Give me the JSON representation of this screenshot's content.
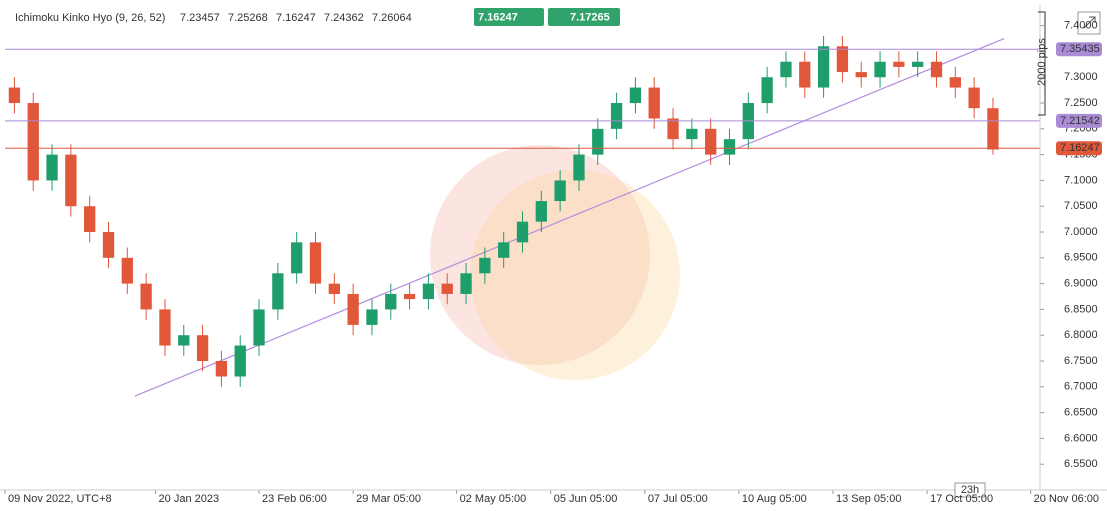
{
  "chart_data": {
    "type": "candlestick",
    "title": "Ichimoku Kinko Hyo (9, 26, 52)",
    "indicator_values": [
      {
        "value": "7.23457",
        "color": "#2f7ed8"
      },
      {
        "value": "7.25268",
        "color": "#c0392b"
      },
      {
        "value": "7.16247",
        "color": "#2ecc8f"
      },
      {
        "value": "7.24362",
        "color": "#1e9e6a"
      },
      {
        "value": "7.26064",
        "color": "#d0212f"
      }
    ],
    "sell_price": "7.16247",
    "buy_price": "7.17265",
    "open": [
      7.28,
      7.25,
      7.1,
      7.15,
      7.05,
      7.0,
      6.95,
      6.9,
      6.85,
      6.78,
      6.8,
      6.75,
      6.72,
      6.78,
      6.85,
      6.92,
      6.98,
      6.9,
      6.88,
      6.82,
      6.85,
      6.88,
      6.87,
      6.9,
      6.88,
      6.92,
      6.95,
      6.98,
      7.02,
      7.06,
      7.1,
      7.15,
      7.2,
      7.25,
      7.28,
      7.22,
      7.18,
      7.2,
      7.15,
      7.18,
      7.25,
      7.3,
      7.33,
      7.28,
      7.36,
      7.31,
      7.3,
      7.33,
      7.32,
      7.33,
      7.3,
      7.28,
      7.24
    ],
    "high": [
      7.3,
      7.27,
      7.17,
      7.17,
      7.07,
      7.02,
      6.97,
      6.92,
      6.87,
      6.82,
      6.82,
      6.77,
      6.8,
      6.87,
      6.94,
      7.0,
      7.0,
      6.92,
      6.9,
      6.87,
      6.9,
      6.9,
      6.92,
      6.92,
      6.94,
      6.97,
      7.0,
      7.04,
      7.08,
      7.12,
      7.17,
      7.22,
      7.27,
      7.3,
      7.3,
      7.24,
      7.22,
      7.22,
      7.2,
      7.27,
      7.32,
      7.35,
      7.35,
      7.38,
      7.38,
      7.33,
      7.35,
      7.35,
      7.35,
      7.35,
      7.32,
      7.3,
      7.26
    ],
    "low": [
      7.23,
      7.08,
      7.08,
      7.03,
      6.98,
      6.93,
      6.88,
      6.83,
      6.76,
      6.76,
      6.73,
      6.7,
      6.7,
      6.76,
      6.83,
      6.9,
      6.88,
      6.86,
      6.8,
      6.8,
      6.83,
      6.85,
      6.85,
      6.86,
      6.86,
      6.9,
      6.93,
      6.96,
      7.0,
      7.04,
      7.08,
      7.13,
      7.18,
      7.23,
      7.2,
      7.16,
      7.16,
      7.13,
      7.13,
      7.16,
      7.23,
      7.28,
      7.26,
      7.26,
      7.29,
      7.28,
      7.28,
      7.3,
      7.3,
      7.28,
      7.26,
      7.22,
      7.15
    ],
    "close": [
      7.25,
      7.1,
      7.15,
      7.05,
      7.0,
      6.95,
      6.9,
      6.85,
      6.78,
      6.8,
      6.75,
      6.72,
      6.78,
      6.85,
      6.92,
      6.98,
      6.9,
      6.88,
      6.82,
      6.85,
      6.88,
      6.87,
      6.9,
      6.88,
      6.92,
      6.95,
      6.98,
      7.02,
      7.06,
      7.1,
      7.15,
      7.2,
      7.25,
      7.28,
      7.22,
      7.18,
      7.2,
      7.15,
      7.18,
      7.25,
      7.3,
      7.33,
      7.28,
      7.36,
      7.31,
      7.3,
      7.33,
      7.32,
      7.33,
      7.3,
      7.28,
      7.24,
      7.16
    ],
    "up_color": "#1e9e6a",
    "down_color": "#e0573a",
    "xlim": [
      0,
      55
    ],
    "xticks": [
      {
        "value": 0,
        "label": "09 Nov 2022, UTC+8"
      },
      {
        "value": 8,
        "label": "20 Jan 2023"
      },
      {
        "value": 13.5,
        "label": "23 Feb 06:00"
      },
      {
        "value": 18.5,
        "label": "29 Mar 05:00"
      },
      {
        "value": 24,
        "label": "02 May 05:00"
      },
      {
        "value": 29,
        "label": "05 Jun 05:00"
      },
      {
        "value": 34,
        "label": "07 Jul 05:00"
      },
      {
        "value": 39,
        "label": "10 Aug 05:00"
      },
      {
        "value": 44,
        "label": "13 Sep 05:00"
      },
      {
        "value": 49,
        "label": "17 Oct 05:00"
      },
      {
        "value": 54.5,
        "label": "20 Nov 06:00"
      }
    ],
    "ylim": [
      6.5,
      7.44
    ],
    "yticks": [
      {
        "value": 6.55,
        "label": "6.5500"
      },
      {
        "value": 6.6,
        "label": "6.6000"
      },
      {
        "value": 6.65,
        "label": "6.6500"
      },
      {
        "value": 6.7,
        "label": "6.7000"
      },
      {
        "value": 6.75,
        "label": "6.7500"
      },
      {
        "value": 6.8,
        "label": "6.8000"
      },
      {
        "value": 6.85,
        "label": "6.8500"
      },
      {
        "value": 6.9,
        "label": "6.9000"
      },
      {
        "value": 6.95,
        "label": "6.9500"
      },
      {
        "value": 7.0,
        "label": "7.0000"
      },
      {
        "value": 7.05,
        "label": "7.0500"
      },
      {
        "value": 7.1,
        "label": "7.1000"
      },
      {
        "value": 7.15,
        "label": "7.1500"
      },
      {
        "value": 7.2,
        "label": "7.2000"
      },
      {
        "value": 7.25,
        "label": "7.2500"
      },
      {
        "value": 7.3,
        "label": "7.3000"
      },
      {
        "value": 7.35,
        "label": "7.3500"
      },
      {
        "value": 7.4,
        "label": "7.4000"
      }
    ],
    "hlines": [
      {
        "value": 7.35435,
        "label": "7.35435",
        "color": "#a98bd6"
      },
      {
        "value": 7.21542,
        "label": "7.21542",
        "color": "#a98bd6"
      },
      {
        "value": 7.16247,
        "label": "7.16247",
        "color": "#e0573a"
      }
    ],
    "trendline": {
      "x": [
        6.9,
        53.1
      ],
      "y": [
        6.682,
        7.375
      ],
      "color": "#b48be0"
    },
    "range_label": "2000 pips",
    "timer_label": "23h"
  }
}
